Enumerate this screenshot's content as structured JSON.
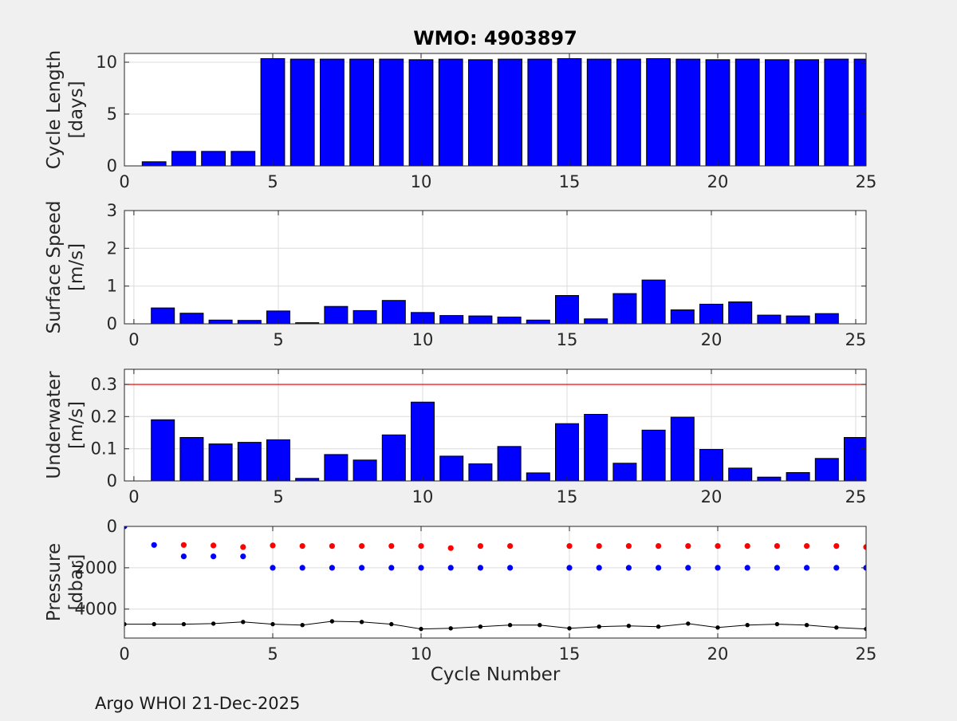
{
  "title": "WMO: 4903897",
  "xlabel": "Cycle Number",
  "footer": "Argo WHOI 21-Dec-2025",
  "colors": {
    "figure_bg": "#f0f0f0",
    "axes_bg": "#ffffff",
    "grid": "#dcdcdc",
    "axis": "#262626",
    "text": "#262626",
    "bar": "#0000ff",
    "bar_edge": "#000000",
    "threshold": "#ff0000",
    "park_dot": "#ff0000",
    "profile_dot": "#0000ff",
    "bottom_dot": "#000000"
  },
  "chart_data": [
    {
      "type": "bar",
      "name": "cycle-length",
      "ylabel_line1": "Cycle Length",
      "ylabel_line2": "[days]",
      "x": [
        1,
        2,
        3,
        4,
        5,
        6,
        7,
        8,
        9,
        10,
        11,
        12,
        13,
        14,
        15,
        16,
        17,
        18,
        19,
        20,
        21,
        22,
        23,
        24,
        25
      ],
      "values": [
        0.4,
        1.4,
        1.4,
        1.4,
        10.35,
        10.3,
        10.3,
        10.3,
        10.3,
        10.25,
        10.3,
        10.25,
        10.3,
        10.3,
        10.35,
        10.3,
        10.3,
        10.35,
        10.3,
        10.25,
        10.3,
        10.25,
        10.25,
        10.3,
        10.3
      ],
      "xlim": [
        0,
        25
      ],
      "ylim": [
        0,
        10.85
      ],
      "xticks": [
        0,
        5,
        10,
        15,
        20,
        25
      ],
      "yticks": [
        0,
        5,
        10
      ],
      "grid": true
    },
    {
      "type": "bar",
      "name": "surface-speed",
      "ylabel_line1": "Surface Speed",
      "ylabel_line2": "[m/s]",
      "x": [
        1,
        2,
        3,
        4,
        5,
        6,
        7,
        8,
        9,
        10,
        11,
        12,
        13,
        14,
        15,
        16,
        17,
        18,
        19,
        20,
        21,
        22,
        23,
        24
      ],
      "values": [
        0.42,
        0.28,
        0.1,
        0.09,
        0.34,
        0.03,
        0.46,
        0.35,
        0.62,
        0.3,
        0.22,
        0.21,
        0.18,
        0.1,
        0.75,
        0.13,
        0.8,
        1.16,
        0.37,
        0.52,
        0.58,
        0.23,
        0.21,
        0.27
      ],
      "xlim": [
        -0.33,
        25.36
      ],
      "ylim": [
        0,
        3
      ],
      "xticks": [
        0,
        5,
        10,
        15,
        20,
        25
      ],
      "yticks": [
        0,
        1,
        2,
        3
      ],
      "grid": true
    },
    {
      "type": "bar",
      "name": "underwater-speed",
      "ylabel_line1": "Underwater",
      "ylabel_line2": "[m/s]",
      "x": [
        1,
        2,
        3,
        4,
        5,
        6,
        7,
        8,
        9,
        10,
        11,
        12,
        13,
        14,
        15,
        16,
        17,
        18,
        19,
        20,
        21,
        22,
        23,
        24,
        25
      ],
      "values": [
        0.19,
        0.135,
        0.115,
        0.12,
        0.128,
        0.008,
        0.082,
        0.065,
        0.143,
        0.245,
        0.077,
        0.053,
        0.107,
        0.025,
        0.178,
        0.207,
        0.055,
        0.158,
        0.198,
        0.098,
        0.04,
        0.012,
        0.026,
        0.07,
        0.135
      ],
      "xlim": [
        -0.33,
        25.36
      ],
      "ylim": [
        0,
        0.347
      ],
      "xticks": [
        0,
        5,
        10,
        15,
        20,
        25
      ],
      "yticks": [
        0,
        0.1,
        0.2,
        0.3
      ],
      "threshold": 0.3,
      "grid": true
    },
    {
      "type": "scatter",
      "name": "pressure",
      "ylabel_line1": "Pressure",
      "ylabel_line2": "[dbar]",
      "xlim": [
        0,
        25
      ],
      "ylim": [
        0,
        5400
      ],
      "reversed": true,
      "xticks": [
        0,
        5,
        10,
        15,
        20,
        25
      ],
      "yticks": [
        0,
        2000,
        4000
      ],
      "grid": true,
      "series": [
        {
          "name": "park-pressure",
          "color": "#ff0000",
          "x": [
            2,
            3,
            4,
            5,
            6,
            7,
            8,
            9,
            10,
            11,
            12,
            13,
            15,
            16,
            17,
            18,
            19,
            20,
            21,
            22,
            23,
            24,
            25
          ],
          "y": [
            900,
            920,
            1000,
            920,
            950,
            950,
            950,
            950,
            950,
            1050,
            950,
            950,
            950,
            950,
            950,
            950,
            950,
            950,
            950,
            950,
            950,
            950,
            1000
          ]
        },
        {
          "name": "profile-pressure",
          "color": "#0000ff",
          "x": [
            0,
            1,
            2,
            3,
            4,
            5,
            6,
            7,
            8,
            9,
            10,
            11,
            12,
            13,
            15,
            16,
            17,
            18,
            19,
            20,
            21,
            22,
            23,
            24,
            25
          ],
          "y": [
            0,
            900,
            1450,
            1450,
            1450,
            2000,
            2000,
            2000,
            2000,
            2000,
            2000,
            2000,
            2000,
            2000,
            2000,
            2000,
            2000,
            2000,
            2000,
            2000,
            2000,
            2000,
            2000,
            2000,
            2000
          ]
        },
        {
          "name": "bottom-pressure",
          "color": "#000000",
          "line": true,
          "x": [
            0,
            1,
            2,
            3,
            4,
            5,
            6,
            7,
            8,
            9,
            10,
            11,
            12,
            13,
            14,
            15,
            16,
            17,
            18,
            19,
            20,
            21,
            22,
            23,
            24,
            25
          ],
          "y": [
            4730,
            4730,
            4730,
            4700,
            4620,
            4730,
            4770,
            4590,
            4620,
            4730,
            4960,
            4930,
            4850,
            4770,
            4770,
            4930,
            4850,
            4810,
            4850,
            4700,
            4890,
            4770,
            4730,
            4770,
            4890,
            4960
          ]
        }
      ]
    }
  ]
}
